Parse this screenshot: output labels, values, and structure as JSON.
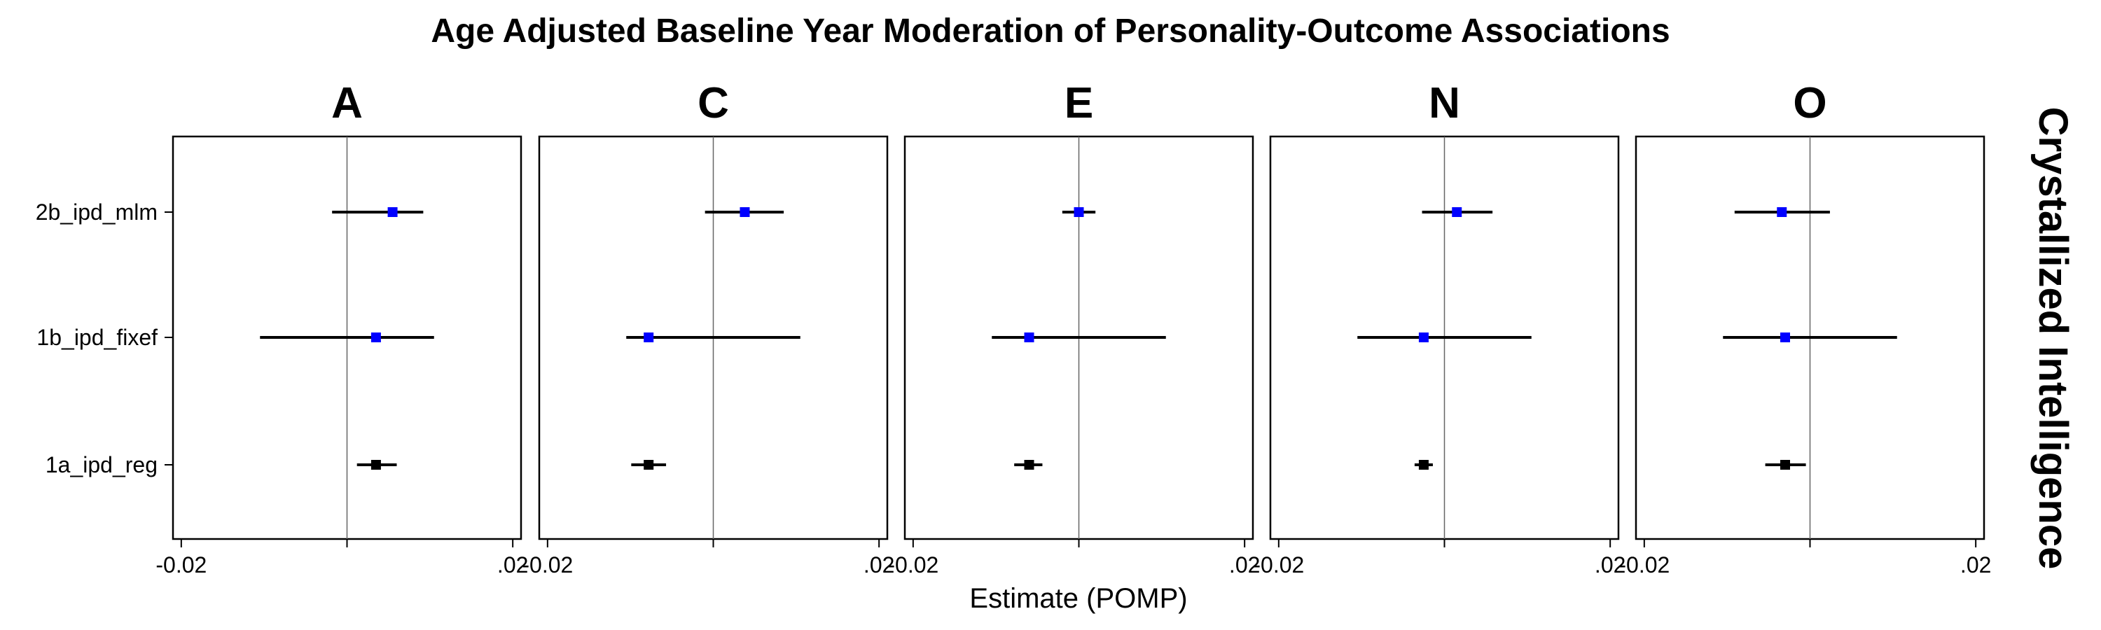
{
  "chart_data": {
    "type": "forest",
    "title": "Age Adjusted Baseline Year Moderation of Personality-Outcome Associations",
    "xlabel": "Estimate (POMP)",
    "ylabel": "",
    "strip_label": "Crystallized Intelligence",
    "xlim": [
      -0.021,
      0.021
    ],
    "x_ticks": [
      -0.02,
      0.0,
      0.02
    ],
    "x_tick_labels": [
      "-0.02",
      "",
      ".02"
    ],
    "reference_line": 0,
    "categories": [
      "2b_ipd_mlm",
      "1b_ipd_fixef",
      "1a_ipd_reg"
    ],
    "category_colors": {
      "2b_ipd_mlm": "#0000ff",
      "1b_ipd_fixef": "#0000ff",
      "1a_ipd_reg": "#000000"
    },
    "facets": [
      {
        "name": "A",
        "points": [
          {
            "model": "2b_ipd_mlm",
            "estimate": 0.0055,
            "lower": -0.0018,
            "upper": 0.0092
          },
          {
            "model": "1b_ipd_fixef",
            "estimate": 0.0035,
            "lower": -0.0105,
            "upper": 0.0105
          },
          {
            "model": "1a_ipd_reg",
            "estimate": 0.0035,
            "lower": 0.0012,
            "upper": 0.006
          }
        ]
      },
      {
        "name": "C",
        "points": [
          {
            "model": "2b_ipd_mlm",
            "estimate": 0.0038,
            "lower": -0.001,
            "upper": 0.0085
          },
          {
            "model": "1b_ipd_fixef",
            "estimate": -0.0078,
            "lower": -0.0105,
            "upper": 0.0105
          },
          {
            "model": "1a_ipd_reg",
            "estimate": -0.0078,
            "lower": -0.0099,
            "upper": -0.0057
          }
        ]
      },
      {
        "name": "E",
        "points": [
          {
            "model": "2b_ipd_mlm",
            "estimate": 0.0,
            "lower": -0.002,
            "upper": 0.002
          },
          {
            "model": "1b_ipd_fixef",
            "estimate": -0.006,
            "lower": -0.0105,
            "upper": 0.0105
          },
          {
            "model": "1a_ipd_reg",
            "estimate": -0.006,
            "lower": -0.0078,
            "upper": -0.0044
          }
        ]
      },
      {
        "name": "N",
        "points": [
          {
            "model": "2b_ipd_mlm",
            "estimate": 0.0015,
            "lower": -0.0027,
            "upper": 0.0058
          },
          {
            "model": "1b_ipd_fixef",
            "estimate": -0.0025,
            "lower": -0.0105,
            "upper": 0.0105
          },
          {
            "model": "1a_ipd_reg",
            "estimate": -0.0025,
            "lower": -0.0036,
            "upper": -0.0014
          }
        ]
      },
      {
        "name": "O",
        "points": [
          {
            "model": "2b_ipd_mlm",
            "estimate": -0.0034,
            "lower": -0.0091,
            "upper": 0.0024
          },
          {
            "model": "1b_ipd_fixef",
            "estimate": -0.003,
            "lower": -0.0105,
            "upper": 0.0105
          },
          {
            "model": "1a_ipd_reg",
            "estimate": -0.003,
            "lower": -0.0054,
            "upper": -0.0005
          }
        ]
      }
    ]
  }
}
